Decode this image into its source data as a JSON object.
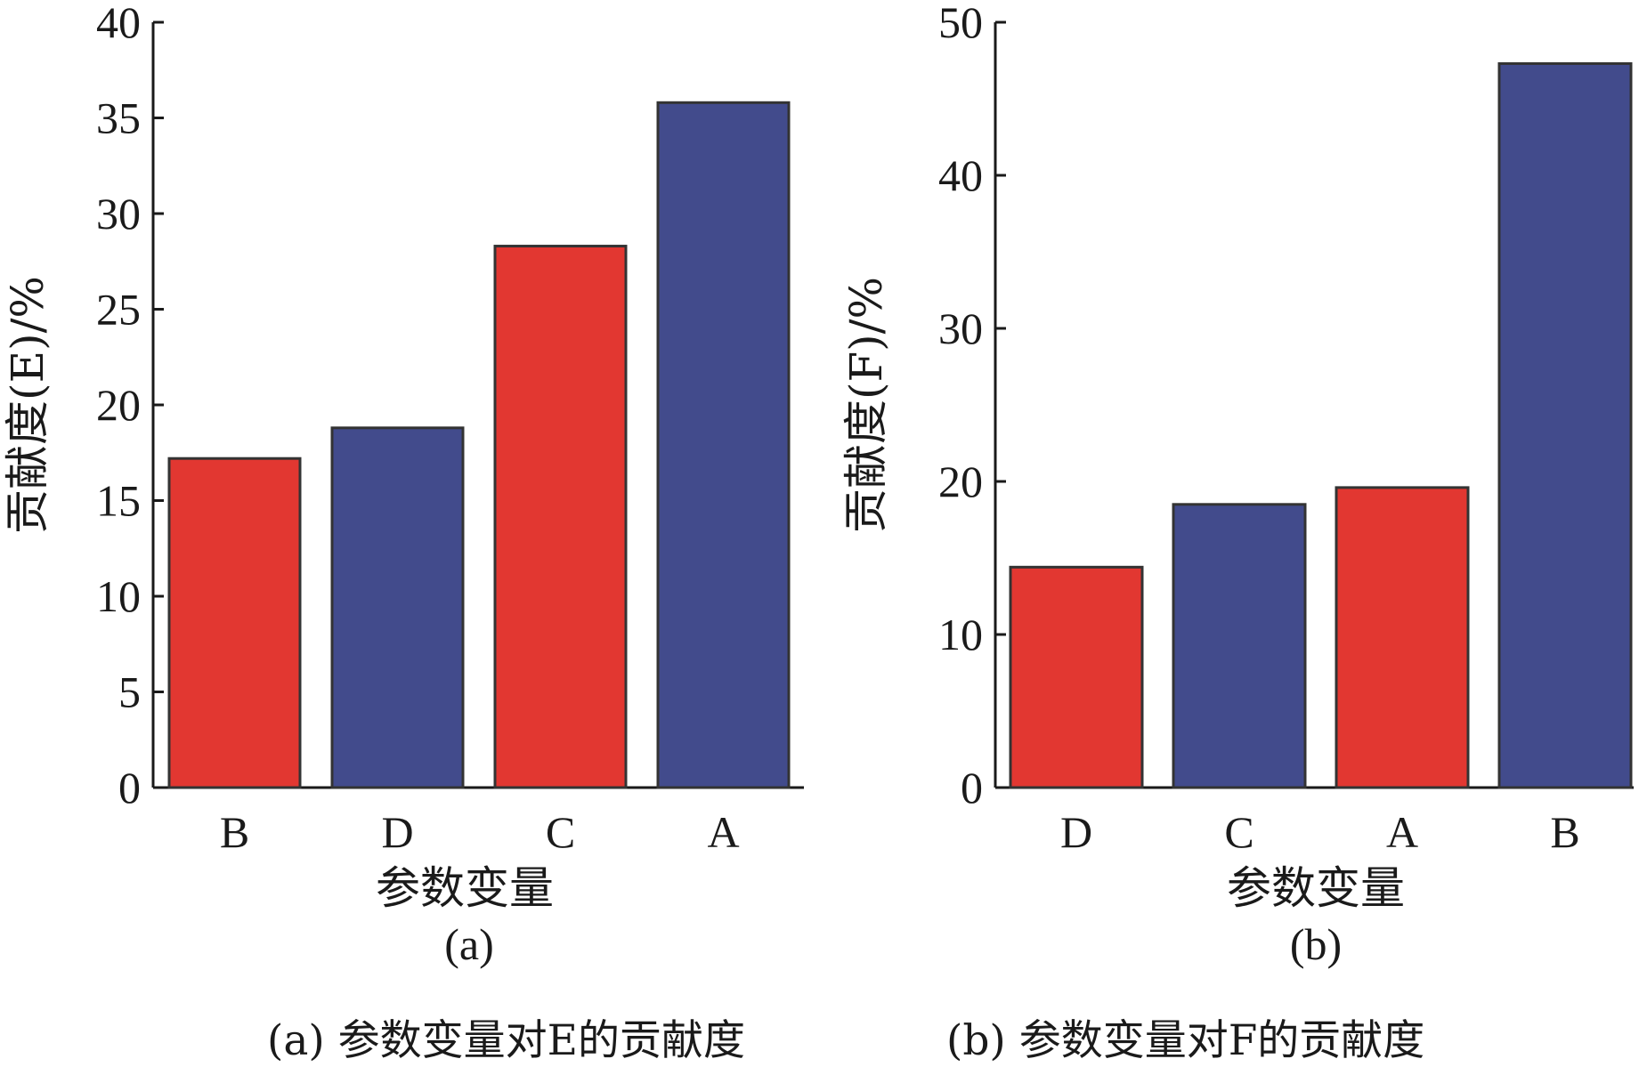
{
  "colors": {
    "red": "#e23731",
    "blue": "#424b8c",
    "axis": "#1a1a1a"
  },
  "chart_data": [
    {
      "type": "bar",
      "panel_label": "(a)",
      "caption": "(a) 参数变量对E的贡献度",
      "xlabel": "参数变量",
      "ylabel": "贡献度(E)/%",
      "categories": [
        "B",
        "D",
        "C",
        "A"
      ],
      "values": [
        17.2,
        18.8,
        28.3,
        35.8
      ],
      "bar_colors": [
        "red",
        "blue",
        "red",
        "blue"
      ],
      "ylim": [
        0,
        40
      ],
      "yticks": [
        0,
        5,
        10,
        15,
        20,
        25,
        30,
        35,
        40
      ],
      "grid": false,
      "legend": "none"
    },
    {
      "type": "bar",
      "panel_label": "(b)",
      "caption": "(b) 参数变量对F的贡献度",
      "xlabel": "参数变量",
      "ylabel": "贡献度(F)/%",
      "categories": [
        "D",
        "C",
        "A",
        "B"
      ],
      "values": [
        14.4,
        18.5,
        19.6,
        47.3
      ],
      "bar_colors": [
        "red",
        "blue",
        "red",
        "blue"
      ],
      "ylim": [
        0,
        50
      ],
      "yticks": [
        0,
        10,
        20,
        30,
        40,
        50
      ],
      "grid": false,
      "legend": "none"
    }
  ]
}
